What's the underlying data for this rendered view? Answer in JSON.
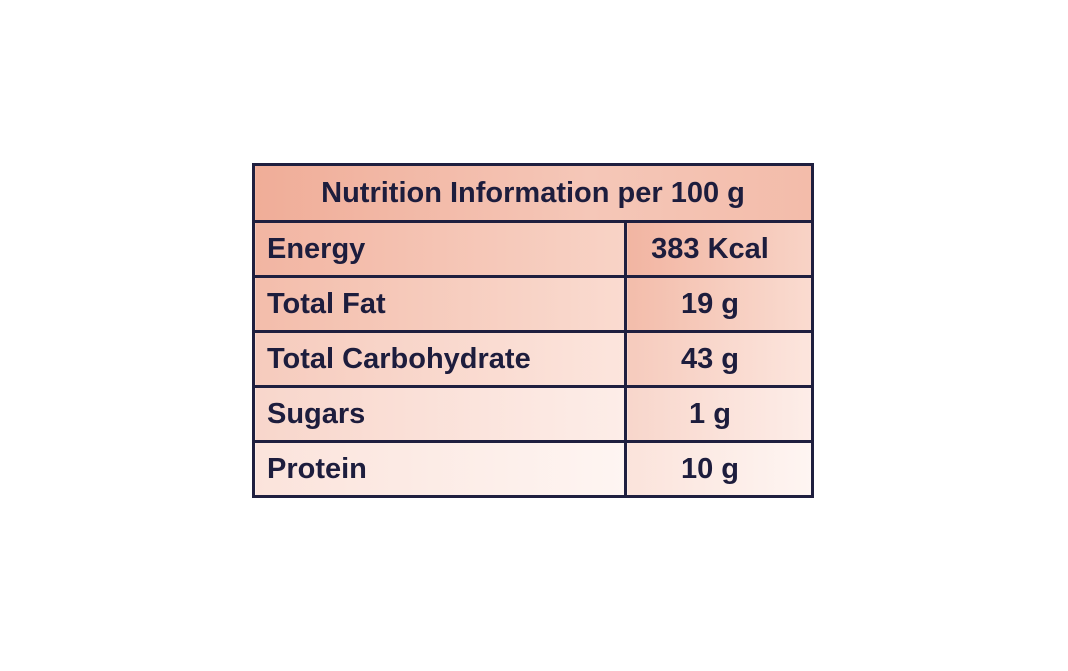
{
  "header": {
    "title": "Nutrition Information per 100 g"
  },
  "table": {
    "rows": [
      [
        "Energy",
        "383 Kcal"
      ],
      [
        "Total Fat",
        "19 g"
      ],
      [
        "Total Carbohydrate",
        "43 g"
      ],
      [
        "Sugars",
        "1 g"
      ],
      [
        "Protein",
        "10 g"
      ]
    ]
  }
}
